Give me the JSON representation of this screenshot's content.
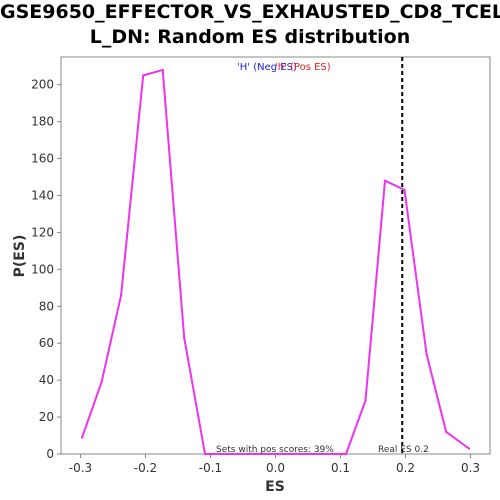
{
  "chart_data": {
    "type": "line",
    "title_line1": "GSE9650_EFFECTOR_VS_EXHAUSTED_CD8_TCEL",
    "title_line2": "L_DN: Random ES distribution",
    "xlabel": "ES",
    "ylabel": "P(ES)",
    "xlim": [
      -0.33,
      0.33
    ],
    "ylim": [
      0,
      215
    ],
    "xticks": [
      -0.3,
      -0.2,
      -0.1,
      0.0,
      0.1,
      0.2,
      0.3
    ],
    "xtick_labels": [
      "-0.3",
      "-0.2",
      "-0.1",
      "0.0",
      "0.1",
      "0.2",
      "0.3"
    ],
    "yticks": [
      0,
      20,
      40,
      60,
      80,
      100,
      120,
      140,
      160,
      180,
      200
    ],
    "ytick_labels": [
      "0",
      "20",
      "40",
      "60",
      "80",
      "100",
      "120",
      "140",
      "160",
      "180",
      "200"
    ],
    "grid": false,
    "series": [
      {
        "color": "#ee33ee",
        "x": [
          -0.2975,
          -0.2675,
          -0.2375,
          -0.2035,
          -0.1735,
          -0.1405,
          -0.1085,
          0.0,
          0.1085,
          0.1385,
          0.1685,
          0.1985,
          0.2325,
          0.2625,
          0.2975
        ],
        "y": [
          9,
          39,
          86,
          205,
          208,
          63,
          0,
          0,
          0,
          29,
          148,
          143,
          54,
          12,
          3
        ]
      }
    ],
    "legend": {
      "placement": "top-center",
      "neg_text": "'H' (Neg ES)",
      "neg_color": "#2222dd",
      "pos_text": "'h' (Pos ES)",
      "pos_color": "#dd2222"
    },
    "real_es": {
      "value": 0.195,
      "label": "Real ES 0.2"
    },
    "annotation": "Sets with pos scores: 39%"
  }
}
